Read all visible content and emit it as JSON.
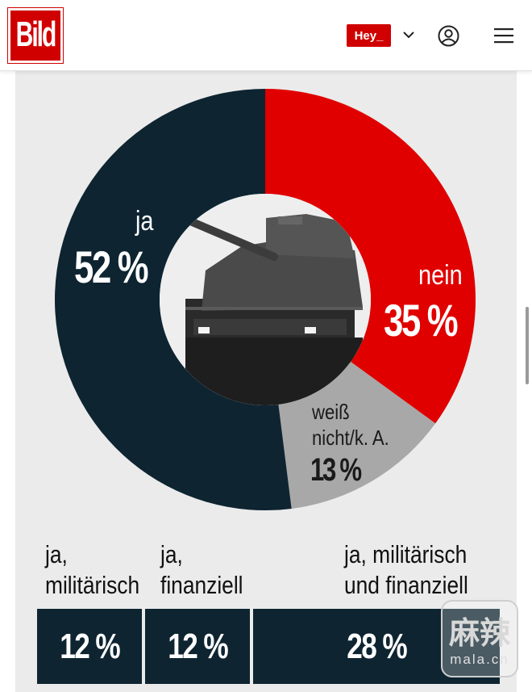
{
  "header": {
    "logo_text": "Bild",
    "hey_label": "Hey_",
    "icons": [
      "chevron-down-icon",
      "user-account-icon",
      "hamburger-menu-icon"
    ],
    "brand_color": "#d00000"
  },
  "chart_data": {
    "type": "pie",
    "style": "donut",
    "center_image": "tank photo",
    "slices": [
      {
        "label": "ja",
        "value": 52,
        "display": "52 %",
        "color": "#0e2431"
      },
      {
        "label": "nein",
        "value": 35,
        "display": "35 %",
        "color": "#e00000"
      },
      {
        "label": "weiß nicht/k. A.",
        "value": 13,
        "display": "13 %",
        "color": "#a8a8a8"
      }
    ],
    "breakdown": {
      "type": "table",
      "categories": [
        "ja, militärisch",
        "ja, finanziell",
        "ja, militärisch und finanziell"
      ],
      "values": [
        12,
        12,
        28
      ],
      "display": [
        "12 %",
        "12 %",
        "28 %"
      ],
      "color": "#0e2431"
    }
  },
  "labels": {
    "ja_name": "ja",
    "ja_pct": "52 %",
    "nein_name": "nein",
    "nein_pct": "35 %",
    "wn_line1": "weiß",
    "wn_line2": "nicht/k. A.",
    "wn_pct": "13 %",
    "c1_line1": "ja,",
    "c1_line2": "militärisch",
    "c2_line1": "ja,",
    "c2_line2": "finanziell",
    "c3_line1": "ja, militärisch",
    "c3_line2": "und finanziell",
    "b1": "12 %",
    "b2": "12 %",
    "b3": "28 %"
  },
  "watermark": {
    "cn": "麻辣",
    "en": "mala.cn"
  }
}
